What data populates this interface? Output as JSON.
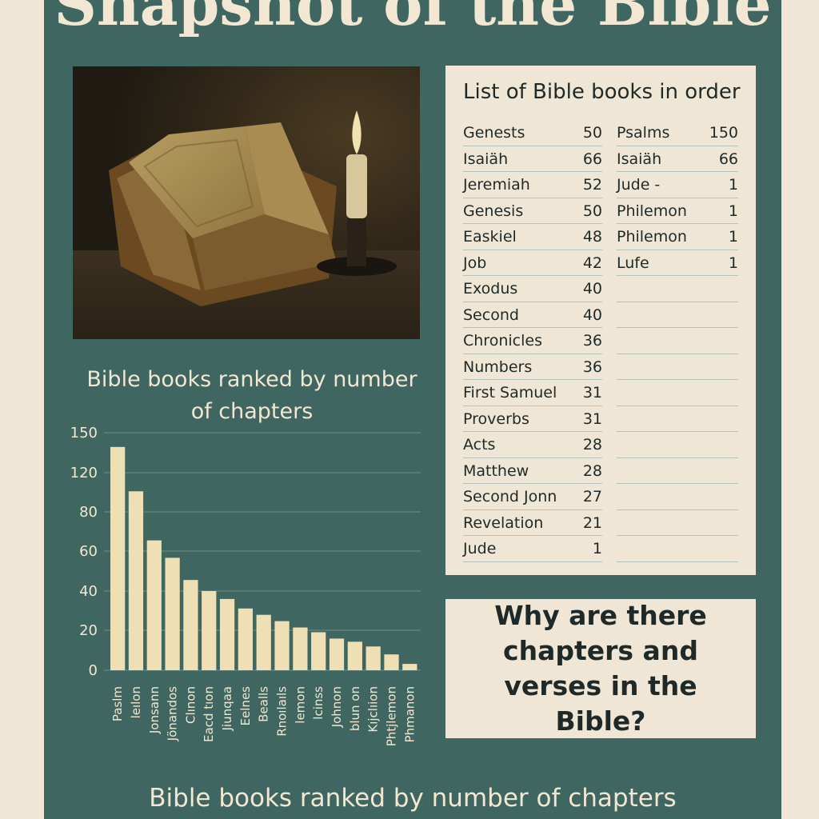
{
  "header": {
    "title": "Snapshot of the Bible"
  },
  "list": {
    "title": "List of Bible books in order",
    "left": [
      {
        "name": "Genests",
        "count": "50"
      },
      {
        "name": "Isaiäh",
        "count": "66"
      },
      {
        "name": "Jeremiah",
        "count": "52"
      },
      {
        "name": "Genesis",
        "count": "50"
      },
      {
        "name": "Easkiel",
        "count": "48"
      },
      {
        "name": "Job",
        "count": "42"
      },
      {
        "name": "Exodus",
        "count": "40"
      },
      {
        "name": "Second",
        "count": "40"
      },
      {
        "name": "Chronicles",
        "count": "36"
      },
      {
        "name": "Numbers",
        "count": "36"
      },
      {
        "name": "First Samuel",
        "count": "31"
      },
      {
        "name": "Proverbs",
        "count": "31"
      },
      {
        "name": "Acts",
        "count": "28"
      },
      {
        "name": "Matthew",
        "count": "28"
      },
      {
        "name": "Second Jonn",
        "count": "27"
      },
      {
        "name": "Revelation",
        "count": "21"
      },
      {
        "name": "Jude",
        "count": "1"
      }
    ],
    "right": [
      {
        "name": "Psalms",
        "count": "150"
      },
      {
        "name": "Isaiäh",
        "count": "66"
      },
      {
        "name": "Jude -",
        "count": "1"
      },
      {
        "name": "Philemon",
        "count": "1"
      },
      {
        "name": "Philemon",
        "count": "1"
      },
      {
        "name": "Lufe",
        "count": "1"
      }
    ]
  },
  "question": "Why are there chapters and verses in the Bible?",
  "footer": "Bible books ranked by number of chapters",
  "chart_data": {
    "type": "bar",
    "title": "Bible books ranked by number of chapters",
    "categories": [
      "Paslm",
      "leılon",
      "Jonsann",
      "Jönandos",
      "Clınon",
      "Eacd tıon",
      "Jiunqaa",
      "Eelnes",
      "Bealls",
      "Rnoılaıls",
      "lemon",
      "lcinss",
      "Johnon",
      "blun on",
      "Kıjclıion",
      "Phtjlemon",
      "Phmanon"
    ],
    "values": [
      141,
      113,
      82,
      71,
      57,
      50,
      45,
      39,
      35,
      31,
      27,
      24,
      20,
      18,
      15,
      10,
      4
    ],
    "yticks": [
      "150",
      "120",
      "80",
      "60",
      "40",
      "20",
      "0"
    ],
    "ylim": [
      0,
      150
    ],
    "grid": true,
    "bar_color": "#efdfb4"
  }
}
